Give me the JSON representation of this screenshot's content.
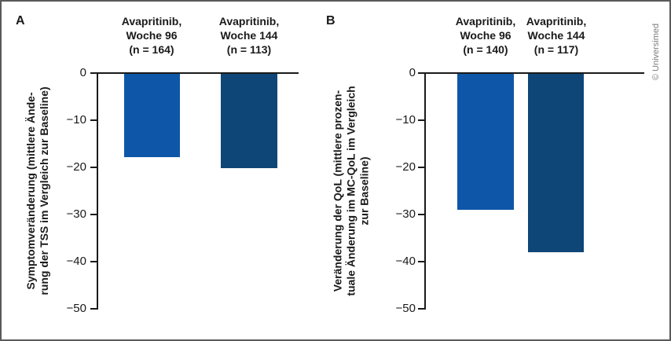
{
  "figure": {
    "credit": "© Universimed",
    "panels": [
      {
        "label": "A",
        "group_headers": [
          "Avapritinib,\nWoche 96\n(n = 164)",
          "Avapritinib,\nWoche 144\n(n = 113)"
        ],
        "y_axis_title": "Symptomveränderung (mittlere Ände-\nrung der TSS im Vergleich zur Baseline)"
      },
      {
        "label": "B",
        "group_headers": [
          "Avapritinib,\nWoche 96\n(n = 140)",
          "Avapritinib,\nWoche 144\n(n = 117)"
        ],
        "y_axis_title": "Veränderung der QoL (mittlere prozen-\ntuale Änderung im MC-QoL im Vergleich\nzur Baseline)"
      }
    ]
  },
  "chart_data": [
    {
      "type": "bar",
      "panel": "A",
      "title": "",
      "categories": [
        "Avapritinib, Woche 96 (n = 164)",
        "Avapritinib, Woche 144 (n = 113)"
      ],
      "values": [
        -17.7,
        -20.0
      ],
      "xlabel": "",
      "ylabel": "Symptomveränderung (mittlere Änderung der TSS im Vergleich zur Baseline)",
      "ylim": [
        -50,
        0
      ],
      "yticks": [
        0,
        -10,
        -20,
        -30,
        -40,
        -50
      ],
      "yticklabels": [
        "0",
        "−10",
        "−20",
        "−30",
        "−40",
        "−50"
      ],
      "bar_colors": [
        "#0e57a8",
        "#0e4678"
      ],
      "grid": false,
      "legend": false
    },
    {
      "type": "bar",
      "panel": "B",
      "title": "",
      "categories": [
        "Avapritinib, Woche 96 (n = 140)",
        "Avapritinib, Woche 144 (n = 117)"
      ],
      "values": [
        -28.9,
        -37.8
      ],
      "xlabel": "",
      "ylabel": "Veränderung der QoL (mittlere prozentuale Änderung im MC-QoL im Vergleich zur Baseline)",
      "ylim": [
        -50,
        0
      ],
      "yticks": [
        0,
        -10,
        -20,
        -30,
        -40,
        -50
      ],
      "yticklabels": [
        "0",
        "−10",
        "−20",
        "−30",
        "−40",
        "−50"
      ],
      "bar_colors": [
        "#0e57a8",
        "#0e4678"
      ],
      "grid": false,
      "legend": false
    }
  ]
}
